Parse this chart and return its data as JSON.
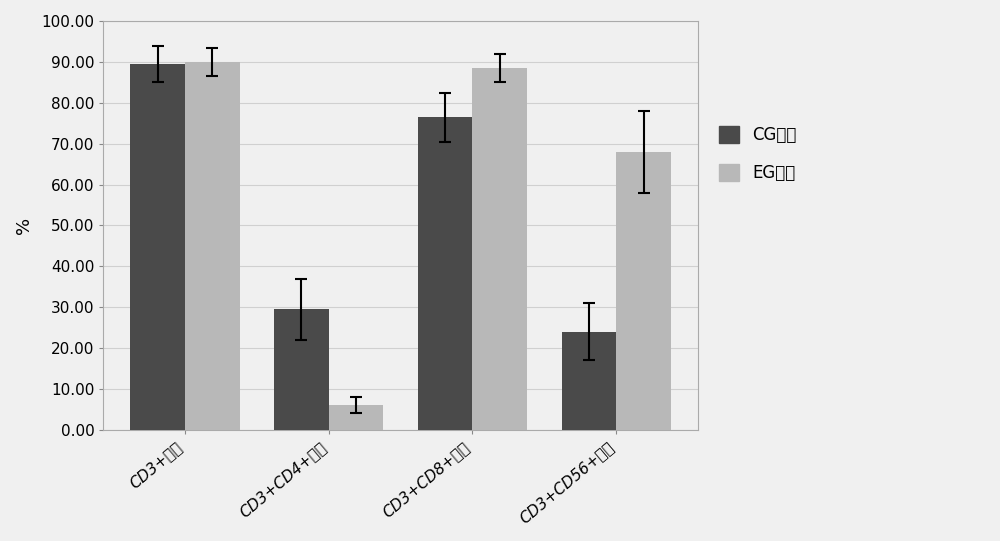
{
  "categories": [
    "CD3+细胞",
    "CD3+CD4+细胞",
    "CD3+CD8+细胞",
    "CD3+CD56+细胞"
  ],
  "cg_values": [
    89.5,
    29.5,
    76.5,
    24.0
  ],
  "eg_values": [
    90.0,
    6.0,
    88.5,
    68.0
  ],
  "cg_errors": [
    4.5,
    7.5,
    6.0,
    7.0
  ],
  "eg_errors": [
    3.5,
    2.0,
    3.5,
    10.0
  ],
  "cg_color": "#4a4a4a",
  "eg_color": "#b8b8b8",
  "ylabel": "%",
  "ylim": [
    0,
    100
  ],
  "yticks": [
    0.0,
    10.0,
    20.0,
    30.0,
    40.0,
    50.0,
    60.0,
    70.0,
    80.0,
    90.0,
    100.0
  ],
  "legend_cg": "CG培养",
  "legend_eg": "EG培养",
  "bar_width": 0.38,
  "background_color": "#f0f0f0",
  "plot_bg_color": "#f0f0f0",
  "grid_color": "#d0d0d0"
}
